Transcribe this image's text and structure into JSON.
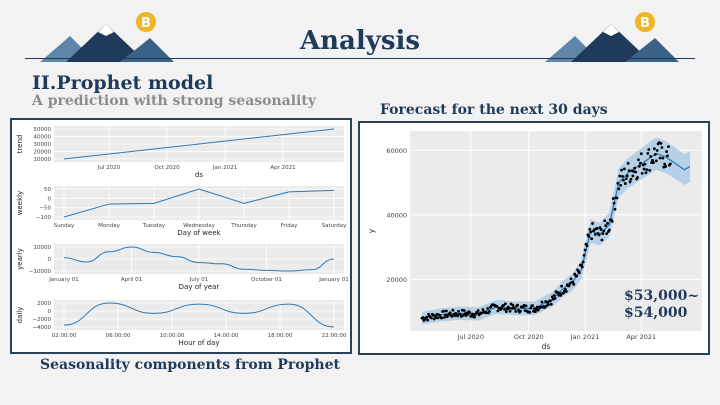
{
  "header": {
    "title": "Analysis",
    "section_title": "II.Prophet model",
    "subtitle": "A prediction with strong seasonality",
    "forecast_caption": "Forecast for the next 30 days",
    "seasonality_caption": "Seasonality components from Prophet",
    "accent_color": "#1f3a5a",
    "coin_color": "#f0b429"
  },
  "annotation": {
    "line1": "$53,000~",
    "line2": "$54,000"
  },
  "chart_data": [
    {
      "type": "line",
      "ylabel": "trend",
      "xlabel": "ds",
      "x_ticks": [
        "Jul 2020",
        "Oct 2020",
        "Jan 2021",
        "Apr 2021"
      ],
      "y_ticks": [
        "50000",
        "40000",
        "30000",
        "20000",
        "10000"
      ],
      "x": [
        0,
        1
      ],
      "values": [
        9000,
        51000
      ]
    },
    {
      "type": "line",
      "ylabel": "weekly",
      "xlabel": "Day of week",
      "categories": [
        "Sunday",
        "Monday",
        "Tuesday",
        "Wednesday",
        "Thursday",
        "Friday",
        "Saturday"
      ],
      "y_ticks": [
        "50",
        "0",
        "−50",
        "−100"
      ],
      "values": [
        -120,
        -30,
        -25,
        75,
        -25,
        55,
        65
      ]
    },
    {
      "type": "line",
      "ylabel": "yearly",
      "xlabel": "Day of year",
      "x_ticks": [
        "January 01",
        "April 01",
        "July 01",
        "October 01",
        "January 01"
      ],
      "y_ticks": [
        "10000",
        "0",
        "−10000"
      ],
      "values": [
        1000,
        -2500,
        6000,
        10000,
        5500,
        2000,
        -3000,
        -4000,
        -8500,
        -9500,
        -10000,
        -9000,
        0
      ]
    },
    {
      "type": "line",
      "ylabel": "daily",
      "xlabel": "Hour of day",
      "x_ticks": [
        "02:00:00",
        "06:00:00",
        "10:00:00",
        "14:00:00",
        "18:00:00",
        "22:00:00"
      ],
      "y_ticks": [
        "2000",
        "0",
        "−2000",
        "−4000"
      ],
      "values": [
        -4000,
        2000,
        -800,
        1700,
        -800,
        1700,
        -4500
      ]
    },
    {
      "type": "scatter",
      "xlabel": "ds",
      "ylabel": "y",
      "x_ticks": [
        "Jul 2020",
        "Oct 2020",
        "Jan 2021",
        "Apr 2021"
      ],
      "y_ticks": [
        "60000",
        "40000",
        "20000"
      ],
      "ylim": [
        4000,
        66000
      ],
      "actual_to_month": 13.3,
      "forecast_to_month": 14.3,
      "x_months": [
        0,
        1,
        2,
        3,
        4,
        5,
        6,
        7,
        7.5,
        8,
        8.5,
        9,
        9.5,
        10,
        10.5,
        11,
        11.5,
        12,
        12.5,
        13,
        13.5,
        14,
        14.3
      ],
      "fitted": [
        8000,
        9000,
        9500,
        9300,
        11500,
        11000,
        11000,
        14000,
        17000,
        19000,
        23000,
        35000,
        34000,
        37000,
        50000,
        53000,
        55000,
        57000,
        59000,
        58000,
        56000,
        54000,
        55000
      ]
    }
  ]
}
